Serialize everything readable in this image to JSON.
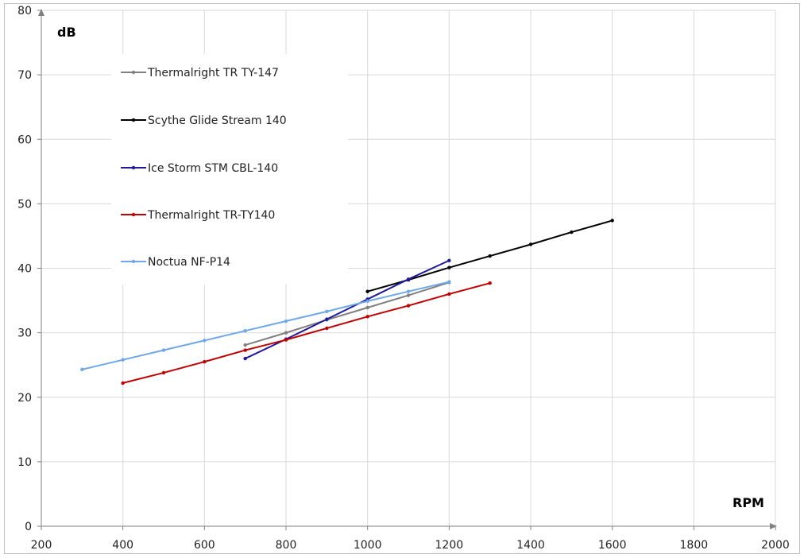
{
  "chart_data": {
    "type": "line",
    "title": "",
    "xlabel": "RPM",
    "ylabel": "dB",
    "xlim": [
      200,
      2000
    ],
    "ylim": [
      0,
      80
    ],
    "x_ticks": [
      200,
      400,
      600,
      800,
      1000,
      1200,
      1400,
      1600,
      1800,
      2000
    ],
    "y_ticks": [
      0,
      10,
      20,
      30,
      40,
      50,
      60,
      70,
      80
    ],
    "grid": true,
    "legend_position": "top-left",
    "series": [
      {
        "name": "Thermalright TR TY-147",
        "color": "#7f7f7f",
        "x": [
          700,
          800,
          900,
          1000,
          1100,
          1200
        ],
        "y": [
          28.1,
          30.0,
          32.0,
          33.9,
          35.8,
          37.8
        ]
      },
      {
        "name": "Scythe Glide Stream 140",
        "color": "#000000",
        "x": [
          1000,
          1100,
          1200,
          1300,
          1400,
          1500,
          1600
        ],
        "y": [
          36.4,
          38.2,
          40.1,
          41.9,
          43.7,
          45.6,
          47.4
        ]
      },
      {
        "name": "Ice Storm STM CBL-140",
        "color": "#1f1a99",
        "x": [
          700,
          800,
          900,
          1000,
          1100,
          1200
        ],
        "y": [
          26.0,
          29.0,
          32.1,
          35.2,
          38.3,
          41.2
        ]
      },
      {
        "name": "Thermalright TR-TY140",
        "color": "#c00000",
        "x": [
          400,
          500,
          600,
          700,
          800,
          900,
          1000,
          1100,
          1200,
          1300
        ],
        "y": [
          22.2,
          23.8,
          25.5,
          27.3,
          28.9,
          30.7,
          32.5,
          34.2,
          36.0,
          37.7
        ]
      },
      {
        "name": "Noctua NF-P14",
        "color": "#6fa8e8",
        "x": [
          300,
          400,
          500,
          600,
          700,
          800,
          900,
          1000,
          1100,
          1200
        ],
        "y": [
          24.3,
          25.8,
          27.3,
          28.8,
          30.3,
          31.8,
          33.3,
          34.9,
          36.4,
          37.9
        ]
      }
    ]
  }
}
